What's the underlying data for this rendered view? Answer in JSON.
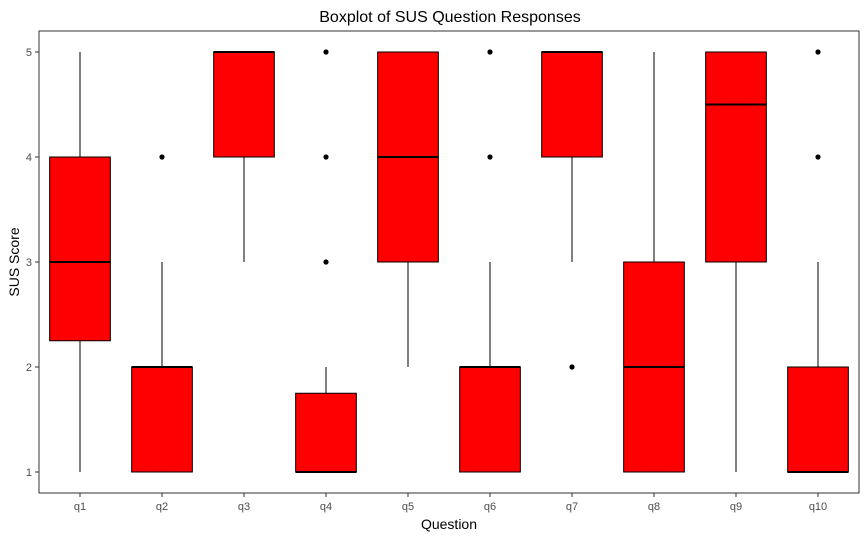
{
  "chart_data": {
    "type": "boxplot",
    "title": "Boxplot of SUS Question Responses",
    "xlabel": "Question",
    "ylabel": "SUS Score",
    "ylim": [
      0.8,
      5.2
    ],
    "yticks": [
      1,
      2,
      3,
      4,
      5
    ],
    "categories": [
      "q1",
      "q2",
      "q3",
      "q4",
      "q5",
      "q6",
      "q7",
      "q8",
      "q9",
      "q10"
    ],
    "box_color": "#ff0000",
    "line_color": "#000000",
    "grid": false,
    "legend": "none",
    "boxes": [
      {
        "category": "q1",
        "whisker_low": 1,
        "q1": 2.25,
        "median": 3,
        "q3": 4,
        "whisker_high": 5,
        "outliers": []
      },
      {
        "category": "q2",
        "whisker_low": 1,
        "q1": 1,
        "median": 2,
        "q3": 2,
        "whisker_high": 3,
        "outliers": [
          4
        ]
      },
      {
        "category": "q3",
        "whisker_low": 3,
        "q1": 4,
        "median": 5,
        "q3": 5,
        "whisker_high": 5,
        "outliers": []
      },
      {
        "category": "q4",
        "whisker_low": 1,
        "q1": 1,
        "median": 1,
        "q3": 1.75,
        "whisker_high": 2,
        "outliers": [
          3,
          4,
          5
        ]
      },
      {
        "category": "q5",
        "whisker_low": 2,
        "q1": 3,
        "median": 4,
        "q3": 5,
        "whisker_high": 5,
        "outliers": []
      },
      {
        "category": "q6",
        "whisker_low": 1,
        "q1": 1,
        "median": 2,
        "q3": 2,
        "whisker_high": 3,
        "outliers": [
          4,
          5
        ]
      },
      {
        "category": "q7",
        "whisker_low": 3,
        "q1": 4,
        "median": 5,
        "q3": 5,
        "whisker_high": 5,
        "outliers": [
          2
        ]
      },
      {
        "category": "q8",
        "whisker_low": 1,
        "q1": 1,
        "median": 2,
        "q3": 3,
        "whisker_high": 5,
        "outliers": []
      },
      {
        "category": "q9",
        "whisker_low": 1,
        "q1": 3,
        "median": 4.5,
        "q3": 5,
        "whisker_high": 5,
        "outliers": []
      },
      {
        "category": "q10",
        "whisker_low": 1,
        "q1": 1,
        "median": 1,
        "q3": 2,
        "whisker_high": 3,
        "outliers": [
          4,
          5
        ]
      }
    ]
  }
}
